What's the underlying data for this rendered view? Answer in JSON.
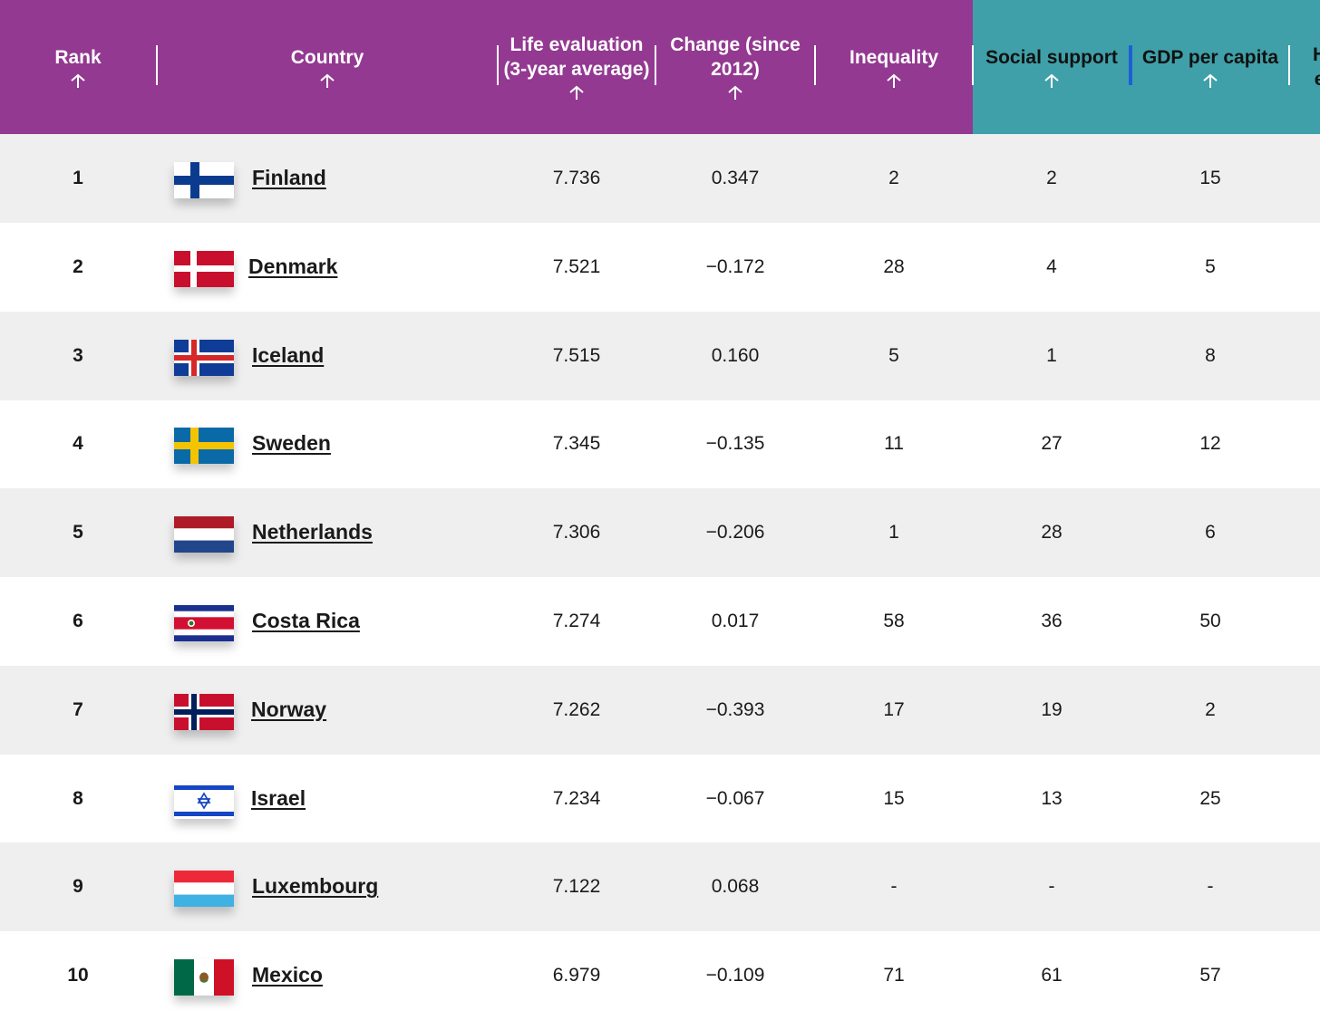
{
  "header": {
    "columns": [
      {
        "key": "rank",
        "label": "Rank"
      },
      {
        "key": "country",
        "label": "Country"
      },
      {
        "key": "life",
        "label": "Life evaluation\n(3-year average)"
      },
      {
        "key": "change",
        "label": "Change (since\n2012)"
      },
      {
        "key": "inequality",
        "label": "Inequality"
      },
      {
        "key": "social",
        "label": "Social support"
      },
      {
        "key": "gdp",
        "label": "GDP per capita"
      },
      {
        "key": "next",
        "label": "H\ne"
      }
    ],
    "sort_icon": "arrow-up-icon",
    "colors": {
      "primary_header": "#933991",
      "secondary_header": "#3fa0a9",
      "active_column_marker": "#1f5fd6"
    }
  },
  "rows": [
    {
      "rank": "1",
      "country": "Finland",
      "flag": "finland-flag-icon",
      "life": "7.736",
      "change": "0.347",
      "inequality": "2",
      "social": "2",
      "gdp": "15"
    },
    {
      "rank": "2",
      "country": "Denmark",
      "flag": "denmark-flag-icon",
      "life": "7.521",
      "change": "−0.172",
      "inequality": "28",
      "social": "4",
      "gdp": "5"
    },
    {
      "rank": "3",
      "country": "Iceland",
      "flag": "iceland-flag-icon",
      "life": "7.515",
      "change": "0.160",
      "inequality": "5",
      "social": "1",
      "gdp": "8"
    },
    {
      "rank": "4",
      "country": "Sweden",
      "flag": "sweden-flag-icon",
      "life": "7.345",
      "change": "−0.135",
      "inequality": "11",
      "social": "27",
      "gdp": "12"
    },
    {
      "rank": "5",
      "country": "Netherlands",
      "flag": "netherlands-flag-icon",
      "life": "7.306",
      "change": "−0.206",
      "inequality": "1",
      "social": "28",
      "gdp": "6"
    },
    {
      "rank": "6",
      "country": "Costa Rica",
      "flag": "costa-rica-flag-icon",
      "life": "7.274",
      "change": "0.017",
      "inequality": "58",
      "social": "36",
      "gdp": "50"
    },
    {
      "rank": "7",
      "country": "Norway",
      "flag": "norway-flag-icon",
      "life": "7.262",
      "change": "−0.393",
      "inequality": "17",
      "social": "19",
      "gdp": "2"
    },
    {
      "rank": "8",
      "country": "Israel",
      "flag": "israel-flag-icon",
      "life": "7.234",
      "change": "−0.067",
      "inequality": "15",
      "social": "13",
      "gdp": "25"
    },
    {
      "rank": "9",
      "country": "Luxembourg",
      "flag": "luxembourg-flag-icon",
      "life": "7.122",
      "change": "0.068",
      "inequality": "-",
      "social": "-",
      "gdp": "-"
    },
    {
      "rank": "10",
      "country": "Mexico",
      "flag": "mexico-flag-icon",
      "life": "6.979",
      "change": "−0.109",
      "inequality": "71",
      "social": "61",
      "gdp": "57"
    }
  ]
}
